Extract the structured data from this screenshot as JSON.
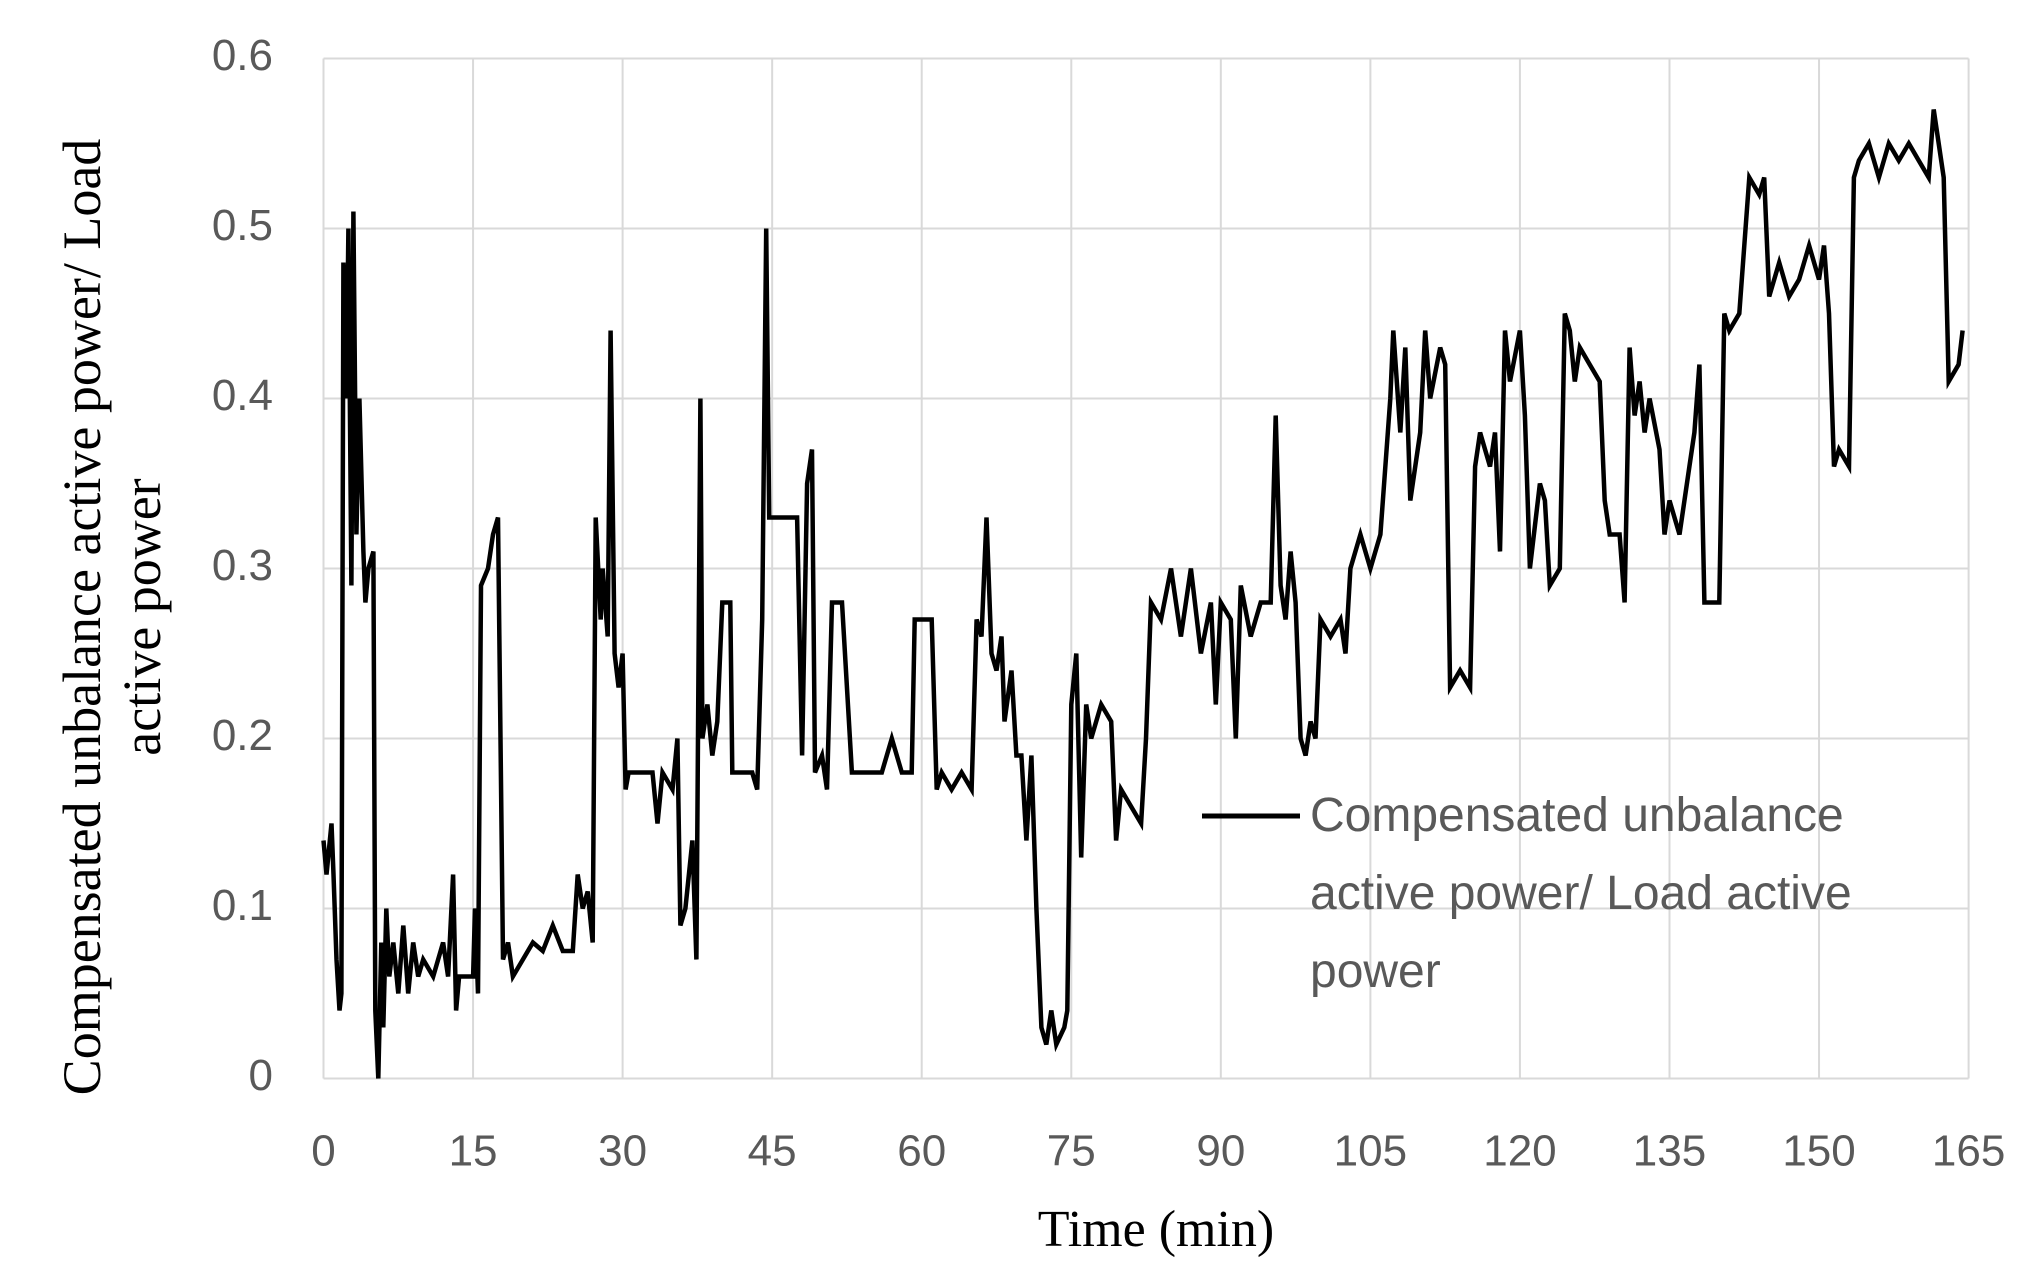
{
  "chart_data": {
    "type": "line",
    "x_label": "Time (min)",
    "y_label": "Compensated unbalance active power/ Load active power",
    "xlim": [
      0,
      165
    ],
    "xticks": [
      0,
      15,
      30,
      45,
      60,
      75,
      90,
      105,
      120,
      135,
      150,
      165
    ],
    "ylim": [
      0,
      0.6
    ],
    "yticks": [
      0,
      0.1,
      0.2,
      0.3,
      0.4,
      0.5,
      0.6
    ],
    "grid": true,
    "x": [
      0,
      0.3,
      0.8,
      1,
      1.3,
      1.6,
      1.8,
      2,
      2.3,
      2.5,
      2.8,
      3,
      3.3,
      3.6,
      4,
      4.2,
      4.5,
      5,
      5.2,
      5.5,
      5.8,
      6,
      6.3,
      6.6,
      7,
      7.5,
      8,
      8.5,
      9,
      9.5,
      10,
      11,
      12,
      12.5,
      13,
      13.3,
      13.6,
      15,
      15.2,
      15.5,
      15.8,
      16.5,
      17,
      17.5,
      18,
      18.5,
      19,
      20,
      21,
      22,
      23,
      24,
      25,
      25.5,
      26,
      26.5,
      27,
      27.3,
      27.8,
      28,
      28.5,
      28.8,
      29.2,
      29.6,
      30,
      30.3,
      30.6,
      32,
      33,
      33.5,
      34,
      35,
      35.5,
      35.8,
      36.3,
      37,
      37.4,
      37.8,
      38,
      38.5,
      39,
      39.5,
      40,
      40.8,
      41,
      43,
      43.5,
      44,
      44.4,
      44.7,
      47,
      47.5,
      48,
      48.5,
      49,
      49.3,
      50,
      50.5,
      51,
      52,
      53,
      56,
      57,
      58,
      59,
      59.3,
      61,
      61.5,
      62,
      63,
      64,
      65,
      65.5,
      66,
      66.5,
      67,
      67.5,
      68,
      68.3,
      69,
      69.5,
      70,
      70.5,
      71,
      71.5,
      72,
      72.5,
      73,
      73.5,
      74.3,
      74.6,
      75,
      75.5,
      76,
      76.5,
      77,
      78,
      79,
      79.5,
      80,
      81,
      82,
      82.5,
      83,
      84,
      85,
      86,
      87,
      88,
      89,
      89.5,
      90,
      91,
      91.5,
      92,
      93,
      94,
      95,
      95.5,
      96,
      96.5,
      97,
      97.5,
      98,
      98.5,
      99,
      99.5,
      100,
      101,
      102,
      102.5,
      103,
      104,
      105,
      106,
      107,
      107.3,
      108,
      108.5,
      109,
      110,
      110.5,
      111,
      112,
      112.5,
      113,
      114,
      115,
      115.5,
      116,
      117,
      117.5,
      118,
      118.5,
      119,
      120,
      120.5,
      121,
      122,
      122.5,
      123,
      124,
      124.5,
      125,
      125.5,
      126,
      127,
      128,
      128.5,
      129,
      130,
      130.5,
      131,
      131.5,
      132,
      132.5,
      133,
      134,
      134.5,
      135,
      136,
      137,
      137.5,
      138,
      138.5,
      140,
      140.5,
      141,
      142,
      142.5,
      143,
      144,
      144.5,
      145,
      146,
      147,
      148,
      149,
      150,
      150.5,
      151,
      151.5,
      152,
      153,
      153.5,
      154,
      155,
      156,
      157,
      158,
      159,
      160,
      161,
      161.5,
      162,
      162.5,
      163,
      164,
      164.4
    ],
    "series": [
      {
        "name": "Compensated unbalance active power/ Load active power",
        "color": "#000000",
        "values": [
          0.14,
          0.12,
          0.15,
          0.12,
          0.07,
          0.04,
          0.05,
          0.48,
          0.4,
          0.5,
          0.29,
          0.51,
          0.32,
          0.4,
          0.31,
          0.28,
          0.3,
          0.31,
          0.04,
          0.0,
          0.08,
          0.03,
          0.1,
          0.06,
          0.08,
          0.05,
          0.09,
          0.05,
          0.08,
          0.06,
          0.07,
          0.06,
          0.08,
          0.06,
          0.12,
          0.04,
          0.06,
          0.06,
          0.1,
          0.05,
          0.29,
          0.3,
          0.32,
          0.33,
          0.07,
          0.08,
          0.06,
          0.07,
          0.08,
          0.075,
          0.09,
          0.075,
          0.075,
          0.12,
          0.1,
          0.11,
          0.08,
          0.33,
          0.27,
          0.3,
          0.26,
          0.44,
          0.25,
          0.23,
          0.25,
          0.17,
          0.18,
          0.18,
          0.18,
          0.15,
          0.18,
          0.17,
          0.2,
          0.09,
          0.1,
          0.14,
          0.07,
          0.4,
          0.2,
          0.22,
          0.19,
          0.21,
          0.28,
          0.28,
          0.18,
          0.18,
          0.17,
          0.27,
          0.5,
          0.33,
          0.33,
          0.33,
          0.19,
          0.35,
          0.37,
          0.18,
          0.19,
          0.17,
          0.28,
          0.28,
          0.18,
          0.18,
          0.2,
          0.18,
          0.18,
          0.27,
          0.27,
          0.17,
          0.18,
          0.17,
          0.18,
          0.17,
          0.27,
          0.26,
          0.33,
          0.25,
          0.24,
          0.26,
          0.21,
          0.24,
          0.19,
          0.19,
          0.14,
          0.19,
          0.1,
          0.03,
          0.02,
          0.04,
          0.02,
          0.03,
          0.04,
          0.22,
          0.25,
          0.13,
          0.22,
          0.2,
          0.22,
          0.21,
          0.14,
          0.17,
          0.16,
          0.15,
          0.2,
          0.28,
          0.27,
          0.3,
          0.26,
          0.3,
          0.25,
          0.28,
          0.22,
          0.28,
          0.27,
          0.2,
          0.29,
          0.26,
          0.28,
          0.28,
          0.39,
          0.29,
          0.27,
          0.31,
          0.28,
          0.2,
          0.19,
          0.21,
          0.2,
          0.27,
          0.26,
          0.27,
          0.25,
          0.3,
          0.32,
          0.3,
          0.32,
          0.4,
          0.44,
          0.38,
          0.43,
          0.34,
          0.38,
          0.44,
          0.4,
          0.43,
          0.42,
          0.23,
          0.24,
          0.23,
          0.36,
          0.38,
          0.36,
          0.38,
          0.31,
          0.44,
          0.41,
          0.44,
          0.39,
          0.3,
          0.35,
          0.34,
          0.29,
          0.3,
          0.45,
          0.44,
          0.41,
          0.43,
          0.42,
          0.41,
          0.34,
          0.32,
          0.32,
          0.28,
          0.43,
          0.39,
          0.41,
          0.38,
          0.4,
          0.37,
          0.32,
          0.34,
          0.32,
          0.36,
          0.38,
          0.42,
          0.28,
          0.28,
          0.45,
          0.44,
          0.45,
          0.49,
          0.53,
          0.52,
          0.53,
          0.46,
          0.48,
          0.46,
          0.47,
          0.49,
          0.47,
          0.49,
          0.45,
          0.36,
          0.37,
          0.36,
          0.53,
          0.54,
          0.55,
          0.53,
          0.55,
          0.54,
          0.55,
          0.54,
          0.53,
          0.57,
          0.55,
          0.53,
          0.41,
          0.42,
          0.44
        ]
      }
    ]
  }
}
